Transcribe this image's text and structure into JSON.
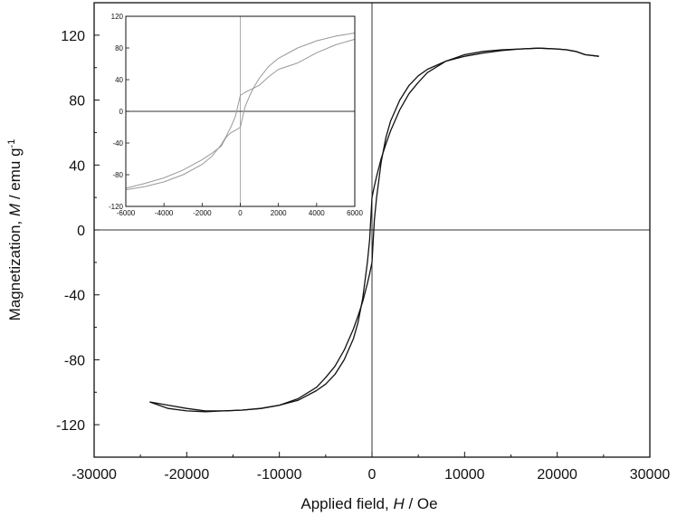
{
  "chart_data": [
    {
      "type": "line",
      "title": "",
      "xlabel_parts": [
        "Applied field, ",
        "H",
        " / Oe"
      ],
      "ylabel_parts": [
        "Magnetization, ",
        "M",
        " / emu g",
        "-1"
      ],
      "xlim": [
        -30000,
        30000
      ],
      "ylim": [
        -140,
        140
      ],
      "xticks": [
        -30000,
        -20000,
        -10000,
        0,
        10000,
        20000,
        30000
      ],
      "xtick_labels": [
        "-30000",
        "-20000",
        "-10000",
        "0",
        "10000",
        "20000",
        "30000"
      ],
      "yticks": [
        -120,
        -80,
        -40,
        0,
        40,
        80,
        120
      ],
      "ytick_labels": [
        "-120",
        "-80",
        "-40",
        "0",
        "40",
        "80",
        "120"
      ],
      "grid": false,
      "line_color": "#111111",
      "series": [
        {
          "name": "",
          "x": [
            -24000,
            -22000,
            -20000,
            -18000,
            -16000,
            -14000,
            -12000,
            -10000,
            -8000,
            -6000,
            -5000,
            -4000,
            -3000,
            -2000,
            -1500,
            -1000,
            -500,
            -250,
            0,
            250,
            500,
            1000,
            1500,
            2000,
            3000,
            4000,
            5000,
            6000,
            8000,
            10000,
            12000,
            14000,
            16000,
            18000,
            20000,
            21000,
            22000,
            23000,
            24500
          ],
          "y": [
            -106,
            -110,
            -111.5,
            -112,
            -111.5,
            -111,
            -110,
            -108,
            -104,
            -97,
            -91,
            -84,
            -74,
            -61,
            -53,
            -44,
            -33,
            -27,
            -20,
            6,
            20,
            42,
            57,
            67,
            80,
            89,
            95,
            99,
            104,
            107,
            109,
            110.5,
            111.5,
            112,
            111.5,
            111,
            110,
            108,
            107
          ]
        },
        {
          "name": "",
          "x": [
            -24000,
            -22000,
            -20000,
            -18000,
            -16000,
            -14000,
            -12000,
            -10000,
            -8000,
            -6000,
            -5000,
            -4000,
            -3000,
            -2000,
            -1500,
            -1000,
            -500,
            -250,
            0,
            250,
            500,
            1000,
            1500,
            2000,
            3000,
            4000,
            5000,
            6000,
            8000,
            10000,
            12000,
            14000,
            16000,
            18000,
            20000,
            21000,
            22000,
            23000,
            24500
          ],
          "y": [
            -106,
            -108,
            -110,
            -111.5,
            -111.5,
            -111,
            -110,
            -108,
            -105,
            -99,
            -95,
            -89,
            -80,
            -67,
            -57,
            -42,
            -20,
            -6,
            20,
            27,
            33,
            44,
            53,
            61,
            74,
            84,
            91,
            97,
            104,
            108,
            110,
            111,
            111.5,
            112,
            111.5,
            111,
            110,
            108,
            107
          ]
        }
      ]
    },
    {
      "type": "line",
      "title": "",
      "xlim": [
        -6000,
        6000
      ],
      "ylim": [
        -120,
        120
      ],
      "xticks": [
        -6000,
        -4000,
        -2000,
        0,
        2000,
        4000,
        6000
      ],
      "xtick_labels": [
        "-6000",
        "-4000",
        "-2000",
        "0",
        "2000",
        "4000",
        "6000"
      ],
      "yticks": [
        -120,
        -80,
        -40,
        0,
        40,
        80,
        120
      ],
      "ytick_labels": [
        "-120",
        "-80",
        "-40",
        "0",
        "40",
        "80",
        "120"
      ],
      "grid": false,
      "line_color": "#999999",
      "series": [
        {
          "name": "",
          "x": [
            -6000,
            -5000,
            -4000,
            -3000,
            -2000,
            -1500,
            -1000,
            -750,
            -500,
            -250,
            0,
            250,
            500,
            750,
            1000,
            1500,
            2000,
            3000,
            4000,
            5000,
            6000
          ],
          "y": [
            -99,
            -95,
            -89,
            -80,
            -67,
            -57,
            -42,
            -32,
            -20,
            -6,
            20,
            24,
            27,
            30,
            33,
            44,
            53,
            61,
            74,
            84,
            91
          ],
          "y_note": ""
        },
        {
          "name": "",
          "x": [
            -6000,
            -5000,
            -4000,
            -3000,
            -2000,
            -1500,
            -1000,
            -750,
            -500,
            -250,
            0,
            250,
            500,
            750,
            1000,
            1500,
            2000,
            3000,
            4000,
            5000,
            6000
          ],
          "y": [
            -97,
            -91,
            -84,
            -74,
            -61,
            -53,
            -44,
            -33,
            -27,
            -24,
            -20,
            6,
            20,
            32,
            42,
            57,
            67,
            80,
            89,
            95,
            99
          ]
        }
      ]
    }
  ]
}
